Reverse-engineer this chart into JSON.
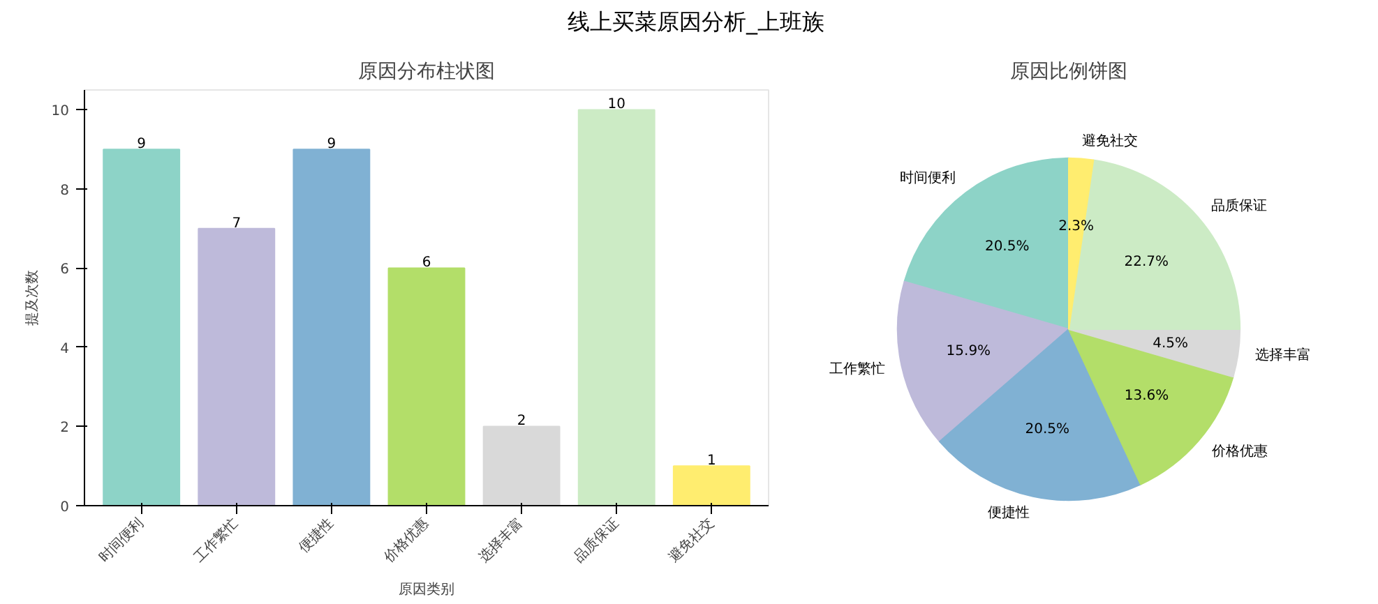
{
  "chart_data": [
    {
      "type": "bar",
      "title": "原因分布柱状图",
      "annotations": [
        "线上买菜原因分析_上班族"
      ],
      "xlabel": "原因类别",
      "ylabel": "提及次数",
      "categories": [
        "时间便利",
        "工作繁忙",
        "便捷性",
        "价格优惠",
        "选择丰富",
        "品质保证",
        "避免社交"
      ],
      "values": [
        9,
        7,
        9,
        6,
        2,
        10,
        1
      ],
      "colors": [
        "#8dd3c7",
        "#bebada",
        "#80b1d3",
        "#b3de69",
        "#d9d9d9",
        "#ccebc5",
        "#ffed6f"
      ],
      "ylim": [
        0,
        10.5
      ],
      "yticks": [
        0,
        2,
        4,
        6,
        8,
        10
      ],
      "grid": false,
      "data_labels": true
    },
    {
      "type": "pie",
      "title": "原因比例饼图",
      "categories": [
        "时间便利",
        "工作繁忙",
        "便捷性",
        "价格优惠",
        "选择丰富",
        "品质保证",
        "避免社交"
      ],
      "values": [
        20.5,
        15.9,
        20.5,
        13.6,
        4.5,
        22.7,
        2.3
      ],
      "value_labels": [
        "20.5%",
        "15.9%",
        "20.5%",
        "13.6%",
        "4.5%",
        "22.7%",
        "2.3%"
      ],
      "colors": [
        "#8dd3c7",
        "#bebada",
        "#80b1d3",
        "#b3de69",
        "#d9d9d9",
        "#ccebc5",
        "#ffed6f"
      ]
    }
  ]
}
